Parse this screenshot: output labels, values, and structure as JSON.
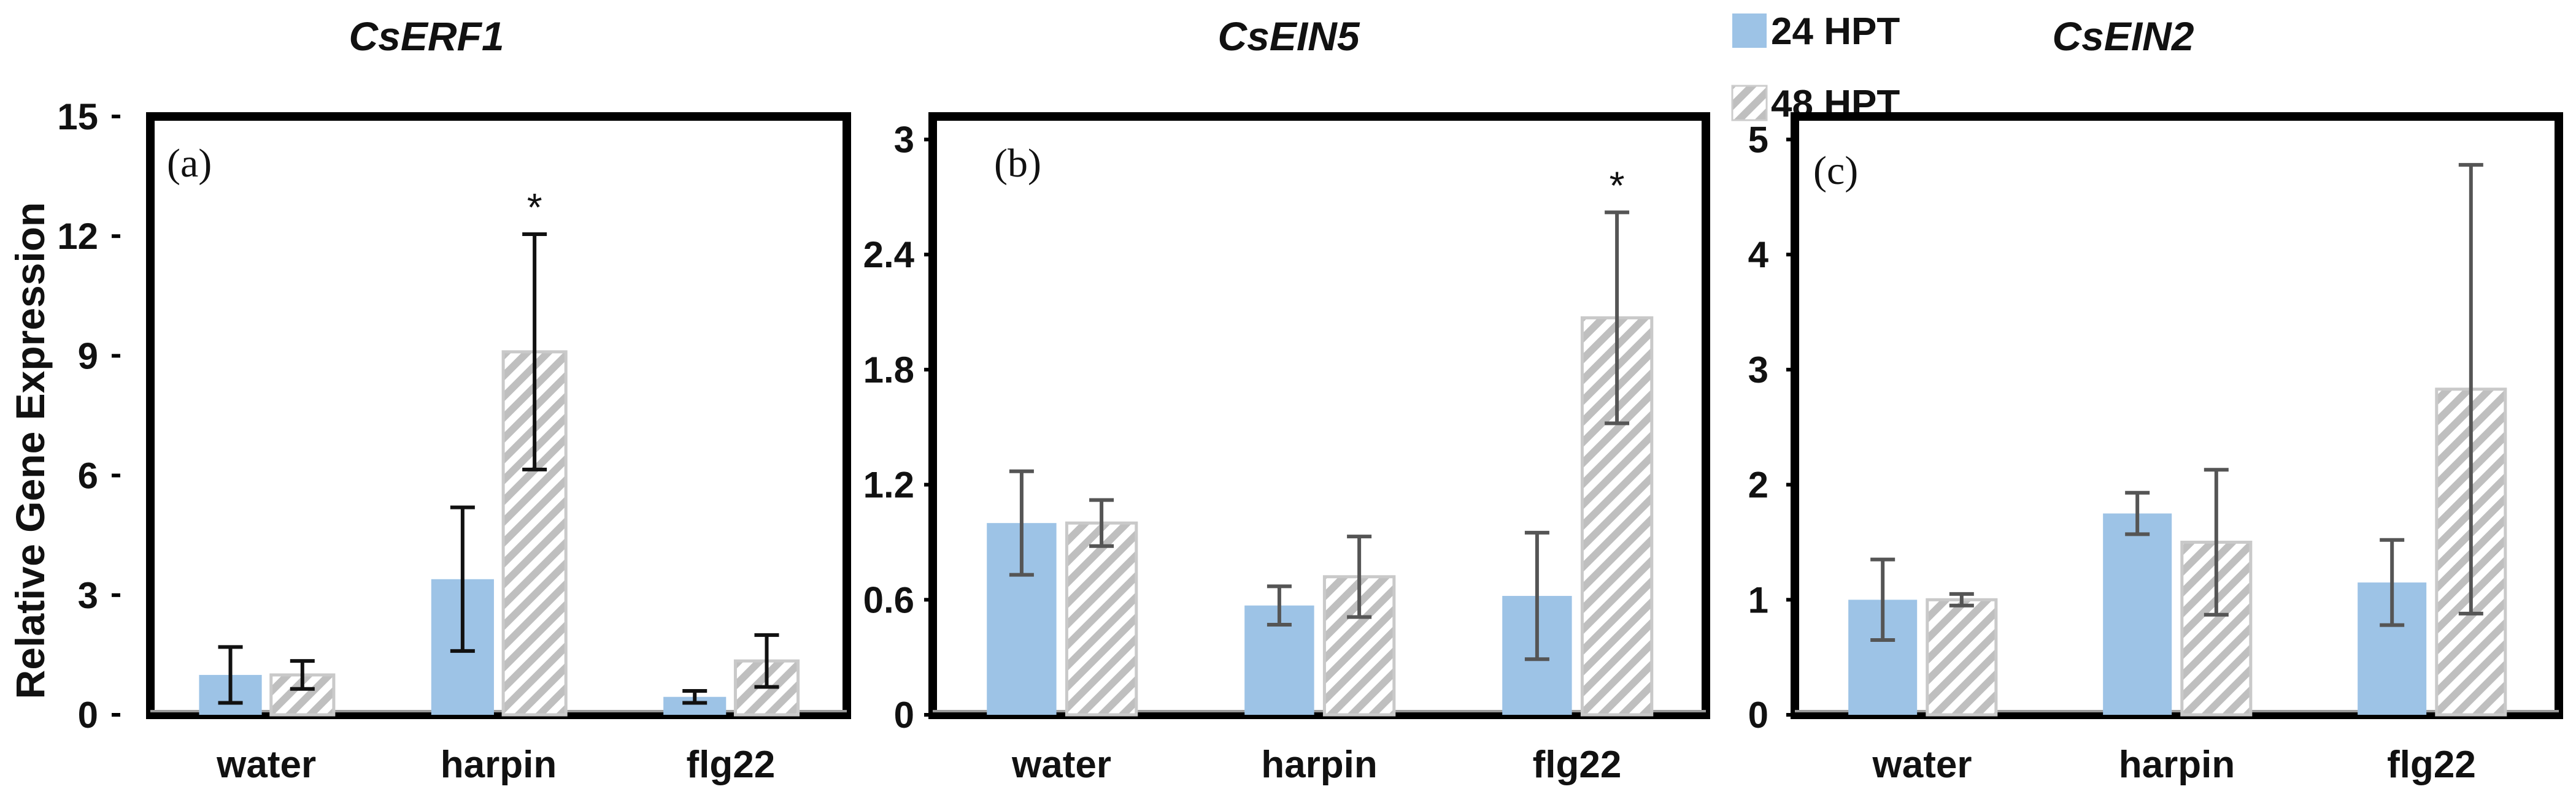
{
  "y_axis_label": "Relative Gene Expression",
  "legend": [
    {
      "label": "24 HPT",
      "color": "#9dc3e6",
      "pattern": "solid"
    },
    {
      "label": "48 HPT",
      "color": "#bfbfbf",
      "pattern": "diagonal-hatch"
    }
  ],
  "chart_data": [
    {
      "type": "bar",
      "panel": "(a)",
      "title": "CsERF1",
      "categories": [
        "water",
        "harpin",
        "flg22"
      ],
      "ylim": [
        0,
        15
      ],
      "yticks": [
        0,
        3,
        6,
        9,
        12,
        15
      ],
      "ytick_labels": [
        "0",
        "3",
        "6",
        "9",
        "12",
        "15"
      ],
      "series": [
        {
          "name": "24 HPT",
          "values": [
            1.0,
            3.4,
            0.45
          ],
          "errors": [
            0.7,
            1.8,
            0.15
          ]
        },
        {
          "name": "48 HPT",
          "values": [
            1.0,
            9.1,
            1.35
          ],
          "errors": [
            0.35,
            2.95,
            0.65
          ]
        }
      ],
      "significance": [
        {
          "category": "harpin",
          "series": "48 HPT",
          "label": "*"
        }
      ]
    },
    {
      "type": "bar",
      "panel": "(b)",
      "title": "CsEIN5",
      "categories": [
        "water",
        "harpin",
        "flg22"
      ],
      "ylim": [
        0,
        3.12
      ],
      "yticks": [
        0,
        0.6,
        1.2,
        1.8,
        2.4,
        3.0
      ],
      "ytick_labels": [
        "0",
        "0.6",
        "1.2",
        "1.8",
        "2.4",
        "3"
      ],
      "series": [
        {
          "name": "24 HPT",
          "values": [
            1.0,
            0.57,
            0.62
          ],
          "errors": [
            0.27,
            0.1,
            0.33
          ]
        },
        {
          "name": "48 HPT",
          "values": [
            1.0,
            0.72,
            2.07
          ],
          "errors": [
            0.12,
            0.21,
            0.55
          ]
        }
      ],
      "significance": [
        {
          "category": "flg22",
          "series": "48 HPT",
          "label": "*"
        }
      ]
    },
    {
      "type": "bar",
      "panel": "(c)",
      "title": "CsEIN2",
      "categories": [
        "water",
        "harpin",
        "flg22"
      ],
      "ylim": [
        0,
        5.2
      ],
      "yticks": [
        0,
        1,
        2,
        3,
        4,
        5
      ],
      "ytick_labels": [
        "0",
        "1",
        "2",
        "3",
        "4",
        "5"
      ],
      "series": [
        {
          "name": "24 HPT",
          "values": [
            1.0,
            1.75,
            1.15
          ],
          "errors": [
            0.35,
            0.18,
            0.37
          ]
        },
        {
          "name": "48 HPT",
          "values": [
            1.0,
            1.5,
            2.83
          ],
          "errors": [
            0.05,
            0.63,
            1.95
          ]
        }
      ],
      "significance": []
    }
  ]
}
